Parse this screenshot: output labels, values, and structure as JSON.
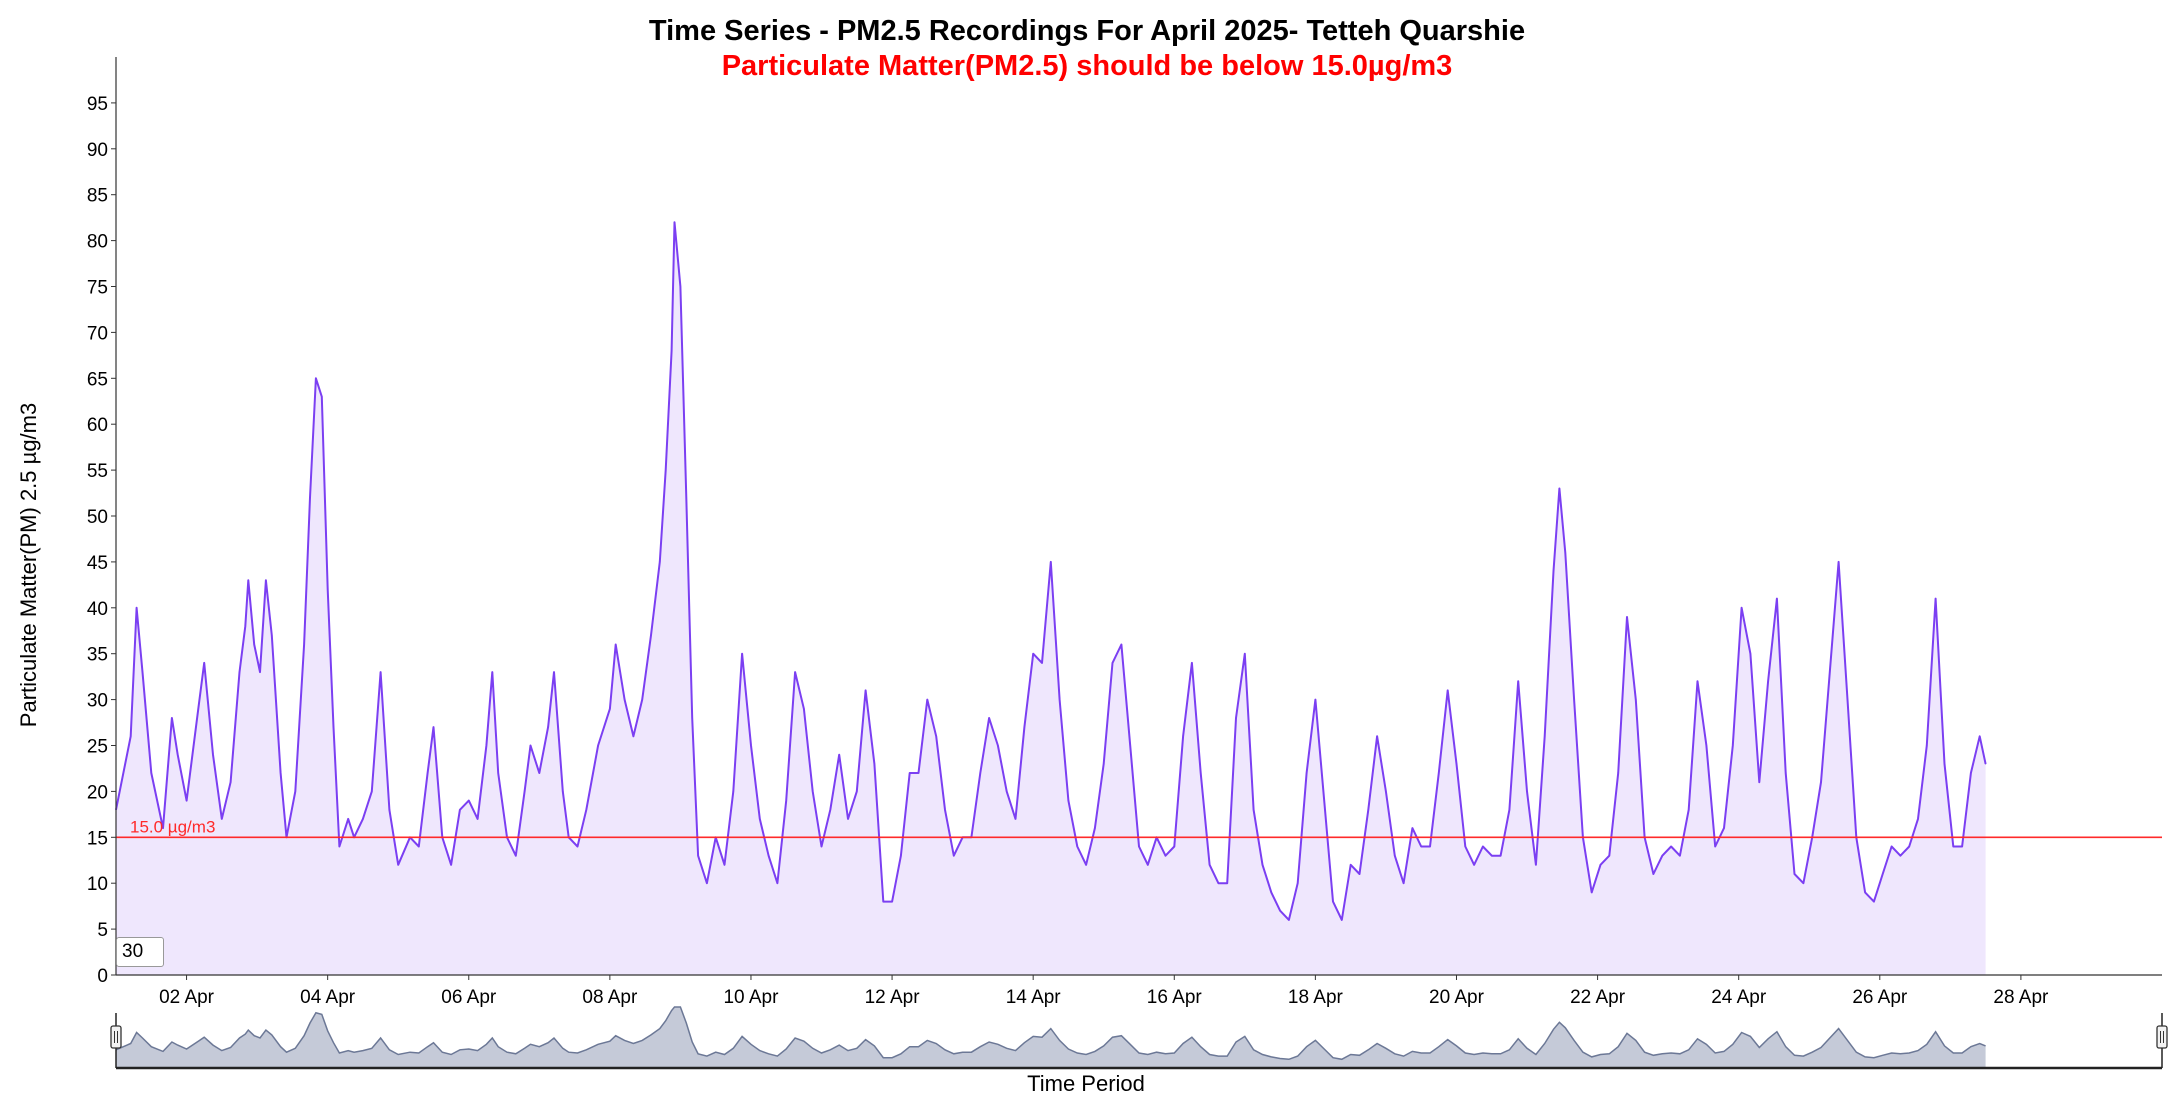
{
  "chart_data": {
    "type": "area",
    "title": "Time Series - PM2.5 Recordings For April 2025- Tetteh Quarshie",
    "subtitle": "Particulate Matter(PM2.5) should be below 15.0µg/m3",
    "xlabel": "Time Period",
    "ylabel": "Particulate Matter(PM) 2.5 µg/m3",
    "ylim": [
      0,
      100
    ],
    "yticks": [
      0,
      5,
      10,
      15,
      20,
      25,
      30,
      35,
      40,
      45,
      50,
      55,
      60,
      65,
      70,
      75,
      80,
      85,
      90,
      95
    ],
    "xlim": [
      "2025-04-01",
      "2025-04-30"
    ],
    "xticks": [
      {
        "date": "2025-04-02",
        "label": "02 Apr"
      },
      {
        "date": "2025-04-04",
        "label": "04 Apr"
      },
      {
        "date": "2025-04-06",
        "label": "06 Apr"
      },
      {
        "date": "2025-04-08",
        "label": "08 Apr"
      },
      {
        "date": "2025-04-10",
        "label": "10 Apr"
      },
      {
        "date": "2025-04-12",
        "label": "12 Apr"
      },
      {
        "date": "2025-04-14",
        "label": "14 Apr"
      },
      {
        "date": "2025-04-16",
        "label": "16 Apr"
      },
      {
        "date": "2025-04-18",
        "label": "18 Apr"
      },
      {
        "date": "2025-04-20",
        "label": "20 Apr"
      },
      {
        "date": "2025-04-22",
        "label": "22 Apr"
      },
      {
        "date": "2025-04-24",
        "label": "24 Apr"
      },
      {
        "date": "2025-04-26",
        "label": "26 Apr"
      },
      {
        "date": "2025-04-28",
        "label": "28 Apr"
      }
    ],
    "threshold": {
      "value": 15.0,
      "label": "15.0 µg/m3",
      "color": "#ff2a2a"
    },
    "grid": false,
    "series": [
      {
        "color": "#7b3ff2",
        "fill": "#efe7fd",
        "points": [
          [
            "2025-04-01 00:00",
            18
          ],
          [
            "2025-04-01 05:00",
            26
          ],
          [
            "2025-04-01 07:00",
            40
          ],
          [
            "2025-04-01 09:00",
            33
          ],
          [
            "2025-04-01 12:00",
            22
          ],
          [
            "2025-04-01 16:00",
            16
          ],
          [
            "2025-04-01 19:00",
            28
          ],
          [
            "2025-04-01 21:00",
            24
          ],
          [
            "2025-04-02 00:00",
            19
          ],
          [
            "2025-04-02 04:00",
            29
          ],
          [
            "2025-04-02 06:00",
            34
          ],
          [
            "2025-04-02 09:00",
            24
          ],
          [
            "2025-04-02 12:00",
            17
          ],
          [
            "2025-04-02 15:00",
            21
          ],
          [
            "2025-04-02 18:00",
            33
          ],
          [
            "2025-04-02 20:00",
            38
          ],
          [
            "2025-04-02 21:00",
            43
          ],
          [
            "2025-04-02 23:00",
            36
          ],
          [
            "2025-04-03 01:00",
            33
          ],
          [
            "2025-04-03 03:00",
            43
          ],
          [
            "2025-04-03 05:00",
            37
          ],
          [
            "2025-04-03 08:00",
            22
          ],
          [
            "2025-04-03 10:00",
            15
          ],
          [
            "2025-04-03 13:00",
            20
          ],
          [
            "2025-04-03 16:00",
            36
          ],
          [
            "2025-04-03 18:00",
            52
          ],
          [
            "2025-04-03 20:00",
            65
          ],
          [
            "2025-04-03 22:00",
            63
          ],
          [
            "2025-04-04 00:00",
            42
          ],
          [
            "2025-04-04 02:00",
            27
          ],
          [
            "2025-04-04 04:00",
            14
          ],
          [
            "2025-04-04 07:00",
            17
          ],
          [
            "2025-04-04 09:00",
            15
          ],
          [
            "2025-04-04 12:00",
            17
          ],
          [
            "2025-04-04 15:00",
            20
          ],
          [
            "2025-04-04 18:00",
            33
          ],
          [
            "2025-04-04 21:00",
            18
          ],
          [
            "2025-04-05 00:00",
            12
          ],
          [
            "2025-04-05 04:00",
            15
          ],
          [
            "2025-04-05 07:00",
            14
          ],
          [
            "2025-04-05 10:00",
            22
          ],
          [
            "2025-04-05 12:00",
            27
          ],
          [
            "2025-04-05 15:00",
            15
          ],
          [
            "2025-04-05 18:00",
            12
          ],
          [
            "2025-04-05 21:00",
            18
          ],
          [
            "2025-04-06 00:00",
            19
          ],
          [
            "2025-04-06 03:00",
            17
          ],
          [
            "2025-04-06 06:00",
            25
          ],
          [
            "2025-04-06 08:00",
            33
          ],
          [
            "2025-04-06 10:00",
            22
          ],
          [
            "2025-04-06 13:00",
            15
          ],
          [
            "2025-04-06 16:00",
            13
          ],
          [
            "2025-04-06 19:00",
            20
          ],
          [
            "2025-04-06 21:00",
            25
          ],
          [
            "2025-04-07 00:00",
            22
          ],
          [
            "2025-04-07 03:00",
            27
          ],
          [
            "2025-04-07 05:00",
            33
          ],
          [
            "2025-04-07 08:00",
            20
          ],
          [
            "2025-04-07 10:00",
            15
          ],
          [
            "2025-04-07 13:00",
            14
          ],
          [
            "2025-04-07 16:00",
            18
          ],
          [
            "2025-04-07 20:00",
            25
          ],
          [
            "2025-04-08 00:00",
            29
          ],
          [
            "2025-04-08 02:00",
            36
          ],
          [
            "2025-04-08 05:00",
            30
          ],
          [
            "2025-04-08 08:00",
            26
          ],
          [
            "2025-04-08 11:00",
            30
          ],
          [
            "2025-04-08 14:00",
            37
          ],
          [
            "2025-04-08 17:00",
            45
          ],
          [
            "2025-04-08 19:00",
            55
          ],
          [
            "2025-04-08 21:00",
            68
          ],
          [
            "2025-04-08 22:00",
            82
          ],
          [
            "2025-04-09 00:00",
            75
          ],
          [
            "2025-04-09 02:00",
            52
          ],
          [
            "2025-04-09 04:00",
            28
          ],
          [
            "2025-04-09 06:00",
            13
          ],
          [
            "2025-04-09 09:00",
            10
          ],
          [
            "2025-04-09 12:00",
            15
          ],
          [
            "2025-04-09 15:00",
            12
          ],
          [
            "2025-04-09 18:00",
            20
          ],
          [
            "2025-04-09 21:00",
            35
          ],
          [
            "2025-04-10 00:00",
            25
          ],
          [
            "2025-04-10 03:00",
            17
          ],
          [
            "2025-04-10 06:00",
            13
          ],
          [
            "2025-04-10 09:00",
            10
          ],
          [
            "2025-04-10 12:00",
            19
          ],
          [
            "2025-04-10 15:00",
            33
          ],
          [
            "2025-04-10 18:00",
            29
          ],
          [
            "2025-04-10 21:00",
            20
          ],
          [
            "2025-04-11 00:00",
            14
          ],
          [
            "2025-04-11 03:00",
            18
          ],
          [
            "2025-04-11 06:00",
            24
          ],
          [
            "2025-04-11 09:00",
            17
          ],
          [
            "2025-04-11 12:00",
            20
          ],
          [
            "2025-04-11 15:00",
            31
          ],
          [
            "2025-04-11 18:00",
            23
          ],
          [
            "2025-04-11 21:00",
            8
          ],
          [
            "2025-04-12 00:00",
            8
          ],
          [
            "2025-04-12 03:00",
            13
          ],
          [
            "2025-04-12 06:00",
            22
          ],
          [
            "2025-04-12 09:00",
            22
          ],
          [
            "2025-04-12 12:00",
            30
          ],
          [
            "2025-04-12 15:00",
            26
          ],
          [
            "2025-04-12 18:00",
            18
          ],
          [
            "2025-04-12 21:00",
            13
          ],
          [
            "2025-04-13 00:00",
            15
          ],
          [
            "2025-04-13 03:00",
            15
          ],
          [
            "2025-04-13 06:00",
            22
          ],
          [
            "2025-04-13 09:00",
            28
          ],
          [
            "2025-04-13 12:00",
            25
          ],
          [
            "2025-04-13 15:00",
            20
          ],
          [
            "2025-04-13 18:00",
            17
          ],
          [
            "2025-04-13 21:00",
            27
          ],
          [
            "2025-04-14 00:00",
            35
          ],
          [
            "2025-04-14 03:00",
            34
          ],
          [
            "2025-04-14 06:00",
            45
          ],
          [
            "2025-04-14 09:00",
            30
          ],
          [
            "2025-04-14 12:00",
            19
          ],
          [
            "2025-04-14 15:00",
            14
          ],
          [
            "2025-04-14 18:00",
            12
          ],
          [
            "2025-04-14 21:00",
            16
          ],
          [
            "2025-04-15 00:00",
            23
          ],
          [
            "2025-04-15 03:00",
            34
          ],
          [
            "2025-04-15 06:00",
            36
          ],
          [
            "2025-04-15 09:00",
            25
          ],
          [
            "2025-04-15 12:00",
            14
          ],
          [
            "2025-04-15 15:00",
            12
          ],
          [
            "2025-04-15 18:00",
            15
          ],
          [
            "2025-04-15 21:00",
            13
          ],
          [
            "2025-04-16 00:00",
            14
          ],
          [
            "2025-04-16 03:00",
            26
          ],
          [
            "2025-04-16 06:00",
            34
          ],
          [
            "2025-04-16 09:00",
            22
          ],
          [
            "2025-04-16 12:00",
            12
          ],
          [
            "2025-04-16 15:00",
            10
          ],
          [
            "2025-04-16 18:00",
            10
          ],
          [
            "2025-04-16 21:00",
            28
          ],
          [
            "2025-04-17 00:00",
            35
          ],
          [
            "2025-04-17 03:00",
            18
          ],
          [
            "2025-04-17 06:00",
            12
          ],
          [
            "2025-04-17 09:00",
            9
          ],
          [
            "2025-04-17 12:00",
            7
          ],
          [
            "2025-04-17 15:00",
            6
          ],
          [
            "2025-04-17 18:00",
            10
          ],
          [
            "2025-04-17 21:00",
            22
          ],
          [
            "2025-04-18 00:00",
            30
          ],
          [
            "2025-04-18 03:00",
            19
          ],
          [
            "2025-04-18 06:00",
            8
          ],
          [
            "2025-04-18 09:00",
            6
          ],
          [
            "2025-04-18 12:00",
            12
          ],
          [
            "2025-04-18 15:00",
            11
          ],
          [
            "2025-04-18 18:00",
            18
          ],
          [
            "2025-04-18 21:00",
            26
          ],
          [
            "2025-04-19 00:00",
            20
          ],
          [
            "2025-04-19 03:00",
            13
          ],
          [
            "2025-04-19 06:00",
            10
          ],
          [
            "2025-04-19 09:00",
            16
          ],
          [
            "2025-04-19 12:00",
            14
          ],
          [
            "2025-04-19 15:00",
            14
          ],
          [
            "2025-04-19 18:00",
            22
          ],
          [
            "2025-04-19 21:00",
            31
          ],
          [
            "2025-04-20 00:00",
            23
          ],
          [
            "2025-04-20 03:00",
            14
          ],
          [
            "2025-04-20 06:00",
            12
          ],
          [
            "2025-04-20 09:00",
            14
          ],
          [
            "2025-04-20 12:00",
            13
          ],
          [
            "2025-04-20 15:00",
            13
          ],
          [
            "2025-04-20 18:00",
            18
          ],
          [
            "2025-04-20 21:00",
            32
          ],
          [
            "2025-04-21 00:00",
            20
          ],
          [
            "2025-04-21 03:00",
            12
          ],
          [
            "2025-04-21 06:00",
            26
          ],
          [
            "2025-04-21 09:00",
            44
          ],
          [
            "2025-04-21 11:00",
            53
          ],
          [
            "2025-04-21 13:00",
            46
          ],
          [
            "2025-04-21 16:00",
            30
          ],
          [
            "2025-04-21 19:00",
            15
          ],
          [
            "2025-04-21 22:00",
            9
          ],
          [
            "2025-04-22 01:00",
            12
          ],
          [
            "2025-04-22 04:00",
            13
          ],
          [
            "2025-04-22 07:00",
            22
          ],
          [
            "2025-04-22 10:00",
            39
          ],
          [
            "2025-04-22 13:00",
            30
          ],
          [
            "2025-04-22 16:00",
            15
          ],
          [
            "2025-04-22 19:00",
            11
          ],
          [
            "2025-04-22 22:00",
            13
          ],
          [
            "2025-04-23 01:00",
            14
          ],
          [
            "2025-04-23 04:00",
            13
          ],
          [
            "2025-04-23 07:00",
            18
          ],
          [
            "2025-04-23 10:00",
            32
          ],
          [
            "2025-04-23 13:00",
            25
          ],
          [
            "2025-04-23 16:00",
            14
          ],
          [
            "2025-04-23 19:00",
            16
          ],
          [
            "2025-04-23 22:00",
            25
          ],
          [
            "2025-04-24 01:00",
            40
          ],
          [
            "2025-04-24 04:00",
            35
          ],
          [
            "2025-04-24 07:00",
            21
          ],
          [
            "2025-04-24 10:00",
            32
          ],
          [
            "2025-04-24 13:00",
            41
          ],
          [
            "2025-04-24 16:00",
            22
          ],
          [
            "2025-04-24 19:00",
            11
          ],
          [
            "2025-04-24 22:00",
            10
          ],
          [
            "2025-04-25 01:00",
            15
          ],
          [
            "2025-04-25 04:00",
            21
          ],
          [
            "2025-04-25 07:00",
            33
          ],
          [
            "2025-04-25 10:00",
            45
          ],
          [
            "2025-04-25 13:00",
            30
          ],
          [
            "2025-04-25 16:00",
            15
          ],
          [
            "2025-04-25 19:00",
            9
          ],
          [
            "2025-04-25 22:00",
            8
          ],
          [
            "2025-04-26 01:00",
            11
          ],
          [
            "2025-04-26 04:00",
            14
          ],
          [
            "2025-04-26 07:00",
            13
          ],
          [
            "2025-04-26 10:00",
            14
          ],
          [
            "2025-04-26 13:00",
            17
          ],
          [
            "2025-04-26 16:00",
            25
          ],
          [
            "2025-04-26 19:00",
            41
          ],
          [
            "2025-04-26 22:00",
            23
          ],
          [
            "2025-04-27 01:00",
            14
          ],
          [
            "2025-04-27 04:00",
            14
          ],
          [
            "2025-04-27 07:00",
            22
          ],
          [
            "2025-04-27 10:00",
            26
          ],
          [
            "2025-04-27 12:00",
            23
          ]
        ]
      }
    ],
    "navigator": {
      "visible": true
    }
  },
  "zoom_input": {
    "value": "30"
  }
}
